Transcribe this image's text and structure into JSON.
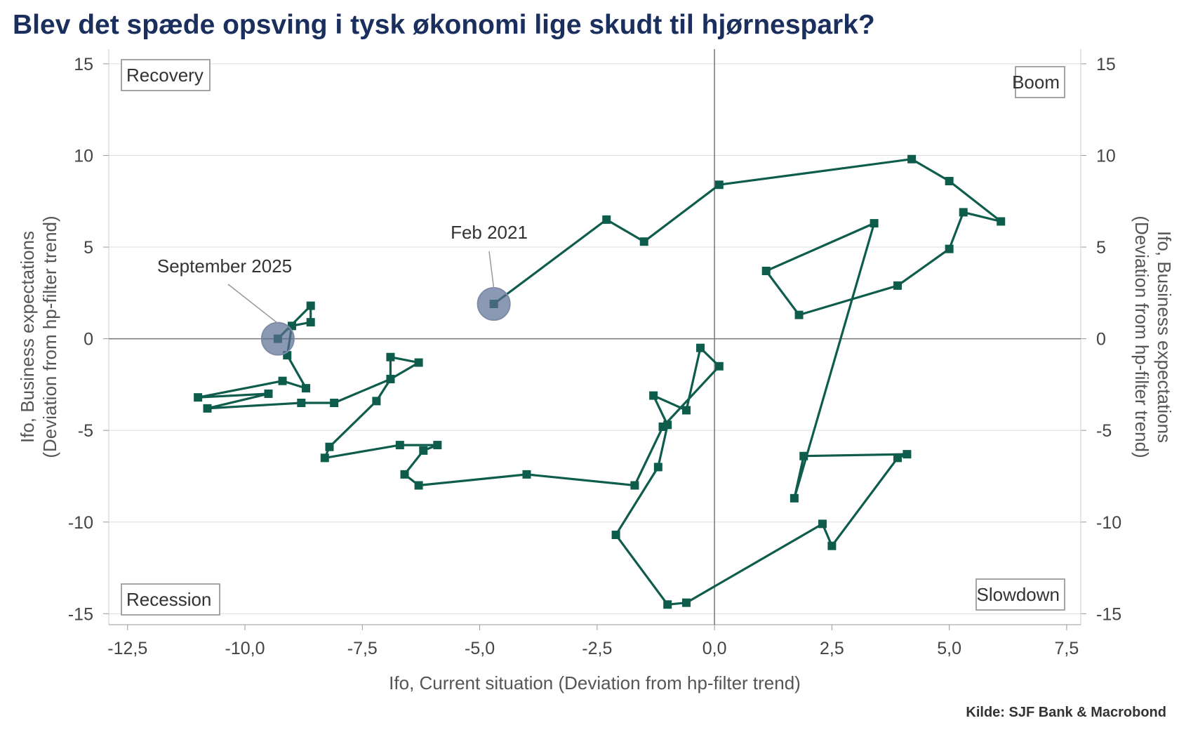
{
  "title": "Blev det spæde opsving i tysk økonomi lige skudt til hjørnespark?",
  "source": "Kilde: SJF Bank & Macrobond",
  "colors": {
    "line": "#0e5c4c",
    "marker": "#0e5c4c",
    "highlight": "#5a6f91",
    "title": "#1a2f5e"
  },
  "chart_data": {
    "type": "line",
    "xlabel": "Ifo, Current situation (Deviation from hp-filter trend)",
    "ylabel_left": [
      "Ifo, Business expectations",
      "(Deviation from hp-filter trend)"
    ],
    "ylabel_right": [
      "Ifo, Business expectations",
      "(Deviation from hp-filter trend)"
    ],
    "xlim": [
      -12.9,
      7.8
    ],
    "ylim": [
      -15.6,
      15.8
    ],
    "xticks": [
      -12.5,
      -10,
      -7.5,
      -5,
      -2.5,
      0,
      2.5,
      5,
      7.5
    ],
    "xtick_labels": [
      "-12,5",
      "-10,0",
      "-7,5",
      "-5,0",
      "-2,5",
      "0,0",
      "2,5",
      "5,0",
      "7,5"
    ],
    "yticks": [
      15,
      10,
      5,
      0,
      -5,
      -10,
      -15
    ],
    "ytick_labels": [
      "15",
      "10",
      "5",
      "0",
      "-5",
      "-10",
      "-15"
    ],
    "grid": true,
    "quadrants": [
      "Recovery",
      "Boom",
      "Recession",
      "Slowdown"
    ],
    "annotations": [
      {
        "text": "Feb 2021",
        "x": -4.7,
        "y": 1.9
      },
      {
        "text": "September 2025",
        "x": -9.3,
        "y": 0.0
      }
    ],
    "series": [
      {
        "points": [
          [
            -4.7,
            1.9
          ],
          [
            -2.3,
            6.5
          ],
          [
            -1.5,
            5.3
          ],
          [
            0.1,
            8.4
          ],
          [
            4.2,
            9.8
          ],
          [
            5.0,
            8.6
          ],
          [
            6.1,
            6.4
          ],
          [
            5.3,
            6.9
          ],
          [
            5.0,
            4.9
          ],
          [
            3.9,
            2.9
          ],
          [
            1.8,
            1.3
          ],
          [
            1.1,
            3.7
          ],
          [
            3.4,
            6.3
          ],
          [
            1.7,
            -8.7
          ],
          [
            1.9,
            -6.4
          ],
          [
            4.1,
            -6.3
          ],
          [
            3.9,
            -6.5
          ],
          [
            2.5,
            -11.3
          ],
          [
            2.3,
            -10.1
          ],
          [
            -0.6,
            -14.4
          ],
          [
            -1.0,
            -14.5
          ],
          [
            -2.1,
            -10.7
          ],
          [
            -1.2,
            -7.0
          ],
          [
            -1.0,
            -4.7
          ],
          [
            -1.3,
            -3.1
          ],
          [
            -0.6,
            -3.9
          ],
          [
            -0.3,
            -0.5
          ],
          [
            0.1,
            -1.5
          ],
          [
            -1.1,
            -4.8
          ],
          [
            -1.7,
            -8.0
          ],
          [
            -4.0,
            -7.4
          ],
          [
            -6.3,
            -8.0
          ],
          [
            -6.6,
            -7.4
          ],
          [
            -6.2,
            -6.1
          ],
          [
            -5.9,
            -5.8
          ],
          [
            -6.7,
            -5.8
          ],
          [
            -8.3,
            -6.5
          ],
          [
            -8.2,
            -5.9
          ],
          [
            -7.2,
            -3.4
          ],
          [
            -6.9,
            -2.2
          ],
          [
            -6.9,
            -1.0
          ],
          [
            -6.3,
            -1.3
          ],
          [
            -6.9,
            -2.2
          ],
          [
            -8.1,
            -3.5
          ],
          [
            -8.8,
            -3.5
          ],
          [
            -10.8,
            -3.8
          ],
          [
            -9.5,
            -3.0
          ],
          [
            -11.0,
            -3.2
          ],
          [
            -9.2,
            -2.3
          ],
          [
            -8.7,
            -2.7
          ],
          [
            -9.1,
            -0.9
          ],
          [
            -9.0,
            0.7
          ],
          [
            -8.6,
            0.9
          ],
          [
            -8.6,
            1.8
          ],
          [
            -9.3,
            0.0
          ]
        ]
      }
    ]
  }
}
